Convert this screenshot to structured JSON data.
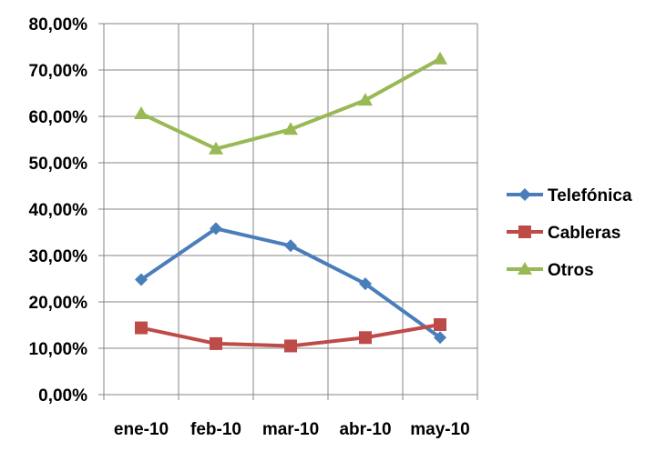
{
  "chart_data": {
    "type": "line",
    "categories": [
      "ene-10",
      "feb-10",
      "mar-10",
      "abr-10",
      "may-10"
    ],
    "series": [
      {
        "name": "Telefónica",
        "values": [
          24.8,
          35.8,
          32.1,
          23.9,
          12.3
        ],
        "color": "#4a7ebb",
        "marker": "diamond"
      },
      {
        "name": "Cableras",
        "values": [
          14.4,
          11.0,
          10.5,
          12.3,
          15.1
        ],
        "color": "#be4b48",
        "marker": "square"
      },
      {
        "name": "Otros",
        "values": [
          60.6,
          53.0,
          57.2,
          63.5,
          72.4
        ],
        "color": "#98b954",
        "marker": "triangle"
      }
    ],
    "ylim": [
      0,
      80
    ],
    "yticks": [
      "0,00%",
      "10,00%",
      "20,00%",
      "30,00%",
      "40,00%",
      "50,00%",
      "60,00%",
      "70,00%",
      "80,00%"
    ],
    "grid": true,
    "legend": "right"
  }
}
